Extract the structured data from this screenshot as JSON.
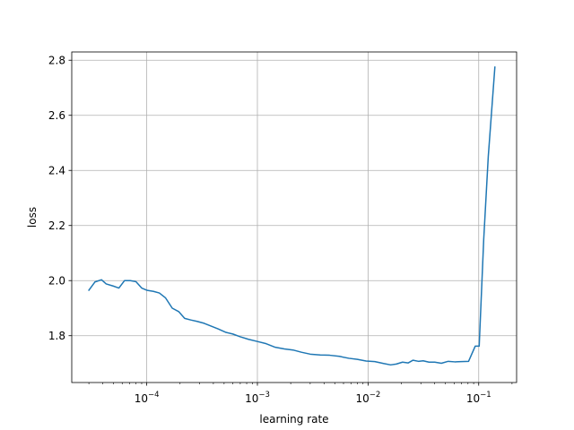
{
  "chart_data": {
    "type": "line",
    "xscale": "log",
    "grid": true,
    "xlabel": "learning rate",
    "ylabel": "loss",
    "xlim": [
      2.1e-05,
      0.22
    ],
    "ylim": [
      1.63,
      2.83
    ],
    "xticks": [
      {
        "value": 0.0001,
        "base": "10",
        "exp": "−4"
      },
      {
        "value": 0.001,
        "base": "10",
        "exp": "−3"
      },
      {
        "value": 0.01,
        "base": "10",
        "exp": "−2"
      },
      {
        "value": 0.1,
        "base": "10",
        "exp": "−1"
      }
    ],
    "yticks": [
      {
        "value": 1.8,
        "label": "1.8"
      },
      {
        "value": 2.0,
        "label": "2.0"
      },
      {
        "value": 2.2,
        "label": "2.2"
      },
      {
        "value": 2.4,
        "label": "2.4"
      },
      {
        "value": 2.6,
        "label": "2.6"
      },
      {
        "value": 2.8,
        "label": "2.8"
      }
    ],
    "color": "#1f77b4",
    "series": [
      {
        "x": [
          3e-05,
          3.4e-05,
          3.9e-05,
          4.3e-05,
          5e-05,
          5.6e-05,
          6.3e-05,
          7.1e-05,
          8e-05,
          9e-05,
          0.0001,
          0.000115,
          0.00013,
          0.000148,
          0.00017,
          0.000195,
          0.00022,
          0.00025,
          0.000285,
          0.00033,
          0.00038,
          0.00044,
          0.00052,
          0.0006,
          0.0007,
          0.00083,
          0.001,
          0.0012,
          0.00145,
          0.00175,
          0.0021,
          0.0025,
          0.003,
          0.0037,
          0.0045,
          0.0055,
          0.0067,
          0.008,
          0.0096,
          0.0115,
          0.0138,
          0.016,
          0.018,
          0.0205,
          0.023,
          0.0255,
          0.0285,
          0.0315,
          0.0355,
          0.04,
          0.046,
          0.053,
          0.061,
          0.07,
          0.081,
          0.093,
          0.101,
          0.111,
          0.122,
          0.14
        ],
        "y": [
          1.965,
          1.995,
          2.003,
          1.988,
          1.98,
          1.973,
          2.0,
          2.0,
          1.996,
          1.973,
          1.965,
          1.961,
          1.955,
          1.937,
          1.9,
          1.887,
          1.863,
          1.857,
          1.852,
          1.845,
          1.835,
          1.825,
          1.812,
          1.806,
          1.796,
          1.787,
          1.779,
          1.771,
          1.758,
          1.752,
          1.748,
          1.74,
          1.733,
          1.73,
          1.729,
          1.725,
          1.718,
          1.714,
          1.708,
          1.706,
          1.699,
          1.694,
          1.697,
          1.704,
          1.701,
          1.711,
          1.707,
          1.709,
          1.704,
          1.704,
          1.7,
          1.707,
          1.705,
          1.706,
          1.707,
          1.762,
          1.762,
          2.15,
          2.45,
          2.775
        ]
      }
    ]
  }
}
